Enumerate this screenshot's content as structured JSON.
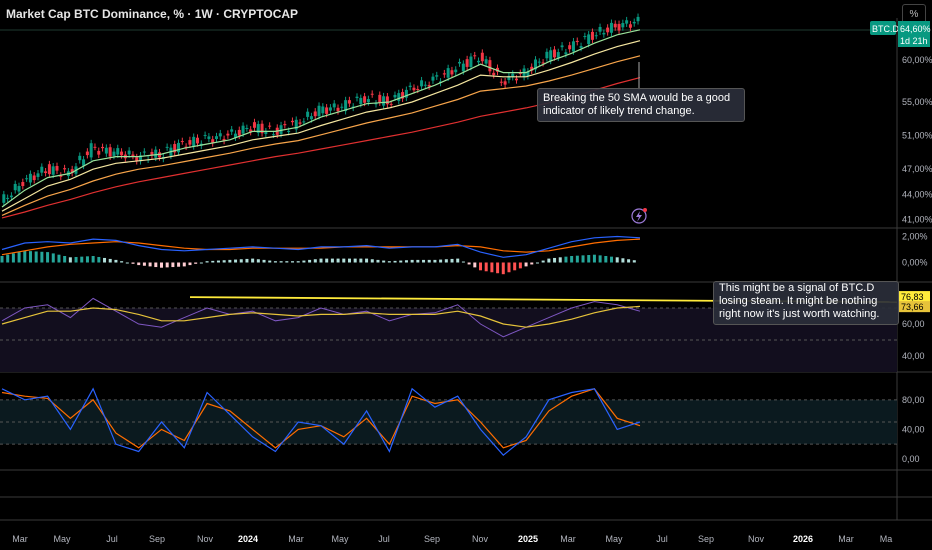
{
  "header": {
    "title": "Market Cap BTC Dominance, % · 1W · CRYPTOCAP",
    "scale_button": "%"
  },
  "symbol_badge": {
    "symbol": "BTC.D",
    "value": "64,60%",
    "countdown": "1d 21h"
  },
  "annotations": {
    "note1": "Breaking the 50 SMA would be a good indicator of likely trend change.",
    "note2": "This might be a signal of BTC.D losing steam.  It might be nothing right now it's just worth watching."
  },
  "price_axis": [
    "60,00%",
    "55,00%",
    "51,00%",
    "47,00%",
    "44,00%",
    "41,00%"
  ],
  "macd_axis": [
    "2,00%",
    "0,00%"
  ],
  "rsi_axis": [
    "60,00",
    "40,00"
  ],
  "rsi_badges": [
    "76,83",
    "73,66"
  ],
  "stoch_axis": [
    "80,00",
    "40,00",
    "0,00"
  ],
  "time_axis": [
    "Mar",
    "May",
    "Jul",
    "Sep",
    "Nov",
    "2024",
    "Mar",
    "May",
    "Jul",
    "Sep",
    "Nov",
    "2025",
    "Mar",
    "May",
    "Jul",
    "Sep",
    "Nov",
    "2026",
    "Mar",
    "Ma"
  ],
  "colors": {
    "up": "#089981",
    "down": "#f23645",
    "ema_fast": "#9be39b",
    "ema_mid": "#f5e6a0",
    "ema_slow": "#f7a44a",
    "sma50": "#e03030",
    "macd": "#2962ff",
    "signal": "#ff6d00",
    "rsi": "#7e57c2",
    "rsi_ma": "#e6c33a",
    "trend": "#ffeb3b"
  },
  "chart_data": [
    {
      "type": "candlestick",
      "title": "Market Cap BTC Dominance, %",
      "yunit": "%",
      "ylim": [
        40,
        65
      ],
      "x": [
        "2023-02",
        "2023-03",
        "2023-04",
        "2023-05",
        "2023-06",
        "2023-07",
        "2023-08",
        "2023-09",
        "2023-10",
        "2023-11",
        "2023-12",
        "2024-01",
        "2024-02",
        "2024-03",
        "2024-04",
        "2024-05",
        "2024-06",
        "2024-07",
        "2024-08",
        "2024-09",
        "2024-10",
        "2024-11",
        "2024-12",
        "2025-01",
        "2025-02",
        "2025-03",
        "2025-04",
        "2025-05",
        "2025-06"
      ],
      "close": [
        43.0,
        45.5,
        47.0,
        46.5,
        49.5,
        49.0,
        48.5,
        48.8,
        50.0,
        50.5,
        51.0,
        52.0,
        51.5,
        52.5,
        54.0,
        54.5,
        55.5,
        55.0,
        56.5,
        57.5,
        59.0,
        60.5,
        57.5,
        58.5,
        60.5,
        61.5,
        63.0,
        64.0,
        64.6
      ],
      "ema_fast": [
        42.5,
        44.5,
        46.0,
        46.5,
        48.0,
        48.5,
        48.5,
        48.8,
        49.5,
        50.0,
        50.5,
        51.5,
        51.5,
        52.0,
        53.2,
        54.0,
        54.8,
        55.0,
        56.0,
        57.0,
        58.2,
        59.5,
        58.5,
        58.5,
        59.8,
        60.8,
        62.0,
        63.0,
        63.6
      ],
      "ema_mid": [
        42.0,
        43.5,
        45.0,
        45.8,
        47.0,
        47.7,
        48.0,
        48.3,
        48.8,
        49.3,
        49.8,
        50.5,
        50.9,
        51.3,
        52.2,
        53.0,
        53.8,
        54.3,
        55.0,
        56.0,
        57.0,
        58.2,
        58.0,
        58.0,
        58.8,
        59.7,
        60.7,
        61.6,
        62.3
      ],
      "ema_slow": [
        41.5,
        42.7,
        43.8,
        44.6,
        45.6,
        46.4,
        47.0,
        47.4,
        47.9,
        48.4,
        48.9,
        49.5,
        50.0,
        50.4,
        51.1,
        51.8,
        52.5,
        53.1,
        53.7,
        54.5,
        55.3,
        56.3,
        56.6,
        56.9,
        57.5,
        58.2,
        59.0,
        59.8,
        60.5
      ],
      "sma50": [
        41.2,
        41.9,
        42.7,
        43.4,
        44.2,
        44.9,
        45.5,
        46.0,
        46.5,
        47.0,
        47.5,
        48.0,
        48.5,
        48.9,
        49.4,
        49.9,
        50.4,
        50.9,
        51.4,
        52.0,
        52.6,
        53.3,
        53.8,
        54.3,
        54.9,
        55.6,
        56.4,
        57.2,
        57.9
      ]
    },
    {
      "type": "bar",
      "title": "MACD",
      "ylim": [
        -1.5,
        2.5
      ],
      "histogram": [
        0.5,
        0.9,
        0.8,
        0.4,
        0.5,
        0.2,
        -0.2,
        -0.4,
        -0.3,
        0.1,
        0.2,
        0.3,
        0.1,
        0.1,
        0.3,
        0.3,
        0.3,
        0.1,
        0.2,
        0.2,
        0.3,
        -0.6,
        -0.9,
        -0.3,
        0.3,
        0.5,
        0.6,
        0.4,
        0.1
      ],
      "macd": [
        1.0,
        1.5,
        1.6,
        1.5,
        1.8,
        1.7,
        1.3,
        1.0,
        0.9,
        1.0,
        1.1,
        1.2,
        1.1,
        1.0,
        1.2,
        1.2,
        1.3,
        1.1,
        1.2,
        1.2,
        1.4,
        0.8,
        0.4,
        0.6,
        1.1,
        1.6,
        1.9,
        2.0,
        1.9
      ],
      "signal": [
        0.6,
        0.9,
        1.2,
        1.4,
        1.5,
        1.6,
        1.5,
        1.3,
        1.1,
        1.0,
        1.0,
        1.1,
        1.1,
        1.1,
        1.1,
        1.2,
        1.2,
        1.2,
        1.2,
        1.2,
        1.3,
        1.2,
        0.9,
        0.8,
        0.9,
        1.2,
        1.5,
        1.7,
        1.8
      ]
    },
    {
      "type": "line",
      "title": "RSI",
      "ylim": [
        30,
        85
      ],
      "rsi": [
        62,
        70,
        72,
        64,
        76,
        68,
        60,
        58,
        64,
        70,
        66,
        68,
        62,
        64,
        70,
        66,
        68,
        62,
        66,
        67,
        72,
        60,
        52,
        58,
        64,
        70,
        74,
        72,
        68
      ],
      "rsi_ma": [
        60,
        64,
        68,
        68,
        70,
        69,
        66,
        62,
        62,
        64,
        66,
        67,
        66,
        65,
        66,
        66,
        67,
        66,
        66,
        66,
        68,
        65,
        60,
        58,
        60,
        63,
        67,
        70,
        71
      ],
      "trendline": {
        "from": [
          "2023-10",
          76.8
        ],
        "to": [
          "2025-07",
          73.7
        ]
      }
    },
    {
      "type": "line",
      "title": "Stoch RSI",
      "ylim": [
        -15,
        115
      ],
      "k": [
        95,
        80,
        85,
        40,
        95,
        20,
        10,
        50,
        15,
        90,
        60,
        30,
        10,
        50,
        45,
        20,
        65,
        10,
        95,
        70,
        85,
        40,
        5,
        30,
        80,
        90,
        95,
        40,
        50
      ],
      "d": [
        90,
        85,
        82,
        55,
        80,
        35,
        15,
        40,
        25,
        75,
        65,
        40,
        15,
        40,
        45,
        30,
        55,
        20,
        85,
        75,
        80,
        50,
        15,
        25,
        65,
        85,
        95,
        55,
        45
      ]
    }
  ]
}
